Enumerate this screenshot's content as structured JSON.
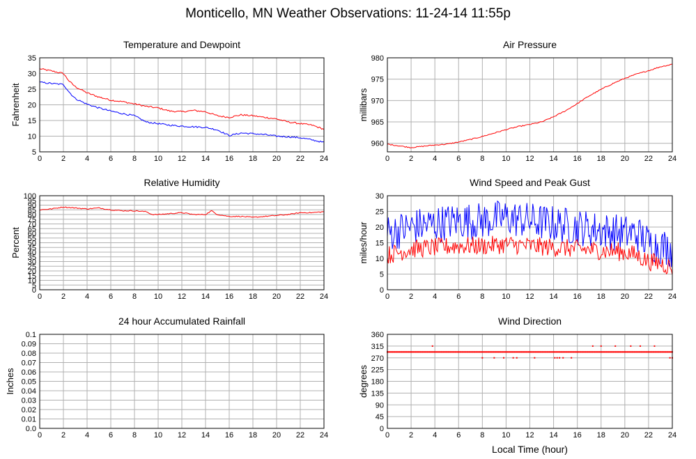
{
  "page_title": "Monticello, MN Weather Observations: 11-24-14 11:55p",
  "x_axis_label": "Local Time (hour)",
  "colors": {
    "red": "#ff0000",
    "blue": "#0000ff",
    "grid": "#b0b0b0",
    "axis": "#000000"
  },
  "chart_data": [
    {
      "id": "temperature",
      "type": "line",
      "title": "Temperature and Dewpoint",
      "ylabel": "Fahrenheit",
      "xlim": [
        0,
        24
      ],
      "ylim": [
        5,
        35
      ],
      "x_ticks": [
        "0",
        "2",
        "4",
        "6",
        "8",
        "10",
        "12",
        "14",
        "16",
        "18",
        "20",
        "22",
        "24"
      ],
      "y_ticks": [
        "5",
        "10",
        "15",
        "20",
        "25",
        "30",
        "35"
      ],
      "grid": true,
      "series": [
        {
          "color": "#ff0000",
          "noise": 0.25,
          "x": [
            0,
            1,
            2,
            2.5,
            3,
            4,
            5,
            6,
            7,
            8,
            9,
            10,
            11,
            12,
            13,
            14,
            15,
            16,
            17,
            18,
            19,
            20,
            21,
            22,
            23,
            24
          ],
          "y": [
            31.5,
            30.8,
            30,
            27.5,
            25.8,
            23.8,
            22.5,
            21.5,
            21,
            20.3,
            19.5,
            19,
            18,
            17.8,
            18.2,
            17.8,
            16.5,
            16,
            16.8,
            16.5,
            16,
            15.5,
            14.5,
            14,
            13.5,
            12.2
          ]
        },
        {
          "color": "#0000ff",
          "noise": 0.25,
          "x": [
            0,
            1,
            2,
            2.5,
            3,
            4,
            5,
            6,
            7,
            8,
            9,
            10,
            11,
            12,
            13,
            14,
            15,
            16,
            17,
            18,
            19,
            20,
            21,
            22,
            23,
            24
          ],
          "y": [
            27.2,
            26.8,
            26.5,
            24,
            22,
            20.2,
            19,
            18,
            17.2,
            16.5,
            14.5,
            14,
            13.5,
            13.2,
            13,
            12.8,
            12,
            10.2,
            11,
            10.8,
            10.5,
            10,
            9.8,
            9.5,
            8.8,
            8
          ]
        }
      ]
    },
    {
      "id": "pressure",
      "type": "line",
      "title": "Air Pressure",
      "ylabel": "millibars",
      "xlim": [
        0,
        24
      ],
      "ylim": [
        958,
        980
      ],
      "x_ticks": [
        "0",
        "2",
        "4",
        "6",
        "8",
        "10",
        "12",
        "14",
        "16",
        "18",
        "20",
        "22",
        "24"
      ],
      "y_ticks": [
        "960",
        "965",
        "970",
        "975",
        "980"
      ],
      "grid": true,
      "series": [
        {
          "color": "#ff0000",
          "noise": 0.12,
          "x": [
            0,
            1,
            2,
            3,
            4,
            5,
            6,
            7,
            8,
            9,
            10,
            11,
            12,
            13,
            14,
            15,
            16,
            17,
            18,
            19,
            20,
            21,
            22,
            23,
            24
          ],
          "y": [
            959.8,
            959.4,
            959.0,
            959.3,
            959.6,
            959.8,
            960.3,
            960.9,
            961.6,
            962.4,
            963.2,
            963.9,
            964.4,
            965.0,
            966.2,
            967.6,
            969.3,
            971.1,
            972.6,
            974,
            975.2,
            976.2,
            977.0,
            977.9,
            978.5
          ]
        }
      ]
    },
    {
      "id": "humidity",
      "type": "line",
      "title": "Relative Humidity",
      "ylabel": "Percent",
      "xlim": [
        0,
        24
      ],
      "ylim": [
        0,
        100
      ],
      "x_ticks": [
        "0",
        "2",
        "4",
        "6",
        "8",
        "10",
        "12",
        "14",
        "16",
        "18",
        "20",
        "22",
        "24"
      ],
      "y_ticks": [
        "0",
        "5",
        "10",
        "15",
        "20",
        "25",
        "30",
        "35",
        "40",
        "45",
        "50",
        "55",
        "60",
        "65",
        "70",
        "75",
        "80",
        "85",
        "90",
        "95",
        "100"
      ],
      "grid": true,
      "series": [
        {
          "color": "#ff0000",
          "noise": 0.5,
          "x": [
            0,
            1,
            2,
            3,
            4,
            5,
            6,
            7,
            8,
            9,
            9.5,
            10,
            11,
            12,
            13,
            14,
            14.5,
            15,
            16,
            17,
            18,
            19,
            20,
            21,
            22,
            23,
            24
          ],
          "y": [
            85,
            86,
            88,
            87,
            86,
            87,
            85,
            84,
            84,
            83,
            80,
            80,
            81,
            82,
            80,
            80,
            84,
            80,
            78,
            78,
            77,
            78,
            79,
            80,
            82,
            82,
            83
          ]
        }
      ]
    },
    {
      "id": "wind",
      "type": "line",
      "title": "Wind Speed and Peak Gust",
      "ylabel": "miles/hour",
      "xlim": [
        0,
        24
      ],
      "ylim": [
        0,
        30
      ],
      "x_ticks": [
        "0",
        "2",
        "4",
        "6",
        "8",
        "10",
        "12",
        "14",
        "16",
        "18",
        "20",
        "22",
        "24"
      ],
      "y_ticks": [
        "0",
        "5",
        "10",
        "15",
        "20",
        "25",
        "30"
      ],
      "grid": true,
      "series": [
        {
          "color": "#0000ff",
          "noise": 6.0,
          "x": [
            0,
            2,
            4,
            6,
            8,
            10,
            12,
            14,
            16,
            18,
            20,
            21,
            22,
            23,
            24
          ],
          "y": [
            18,
            20,
            21,
            22,
            22,
            23,
            22,
            21,
            20,
            19,
            18,
            18,
            15,
            14,
            13
          ]
        },
        {
          "color": "#ff0000",
          "noise": 3.0,
          "x": [
            0,
            2,
            4,
            6,
            8,
            10,
            12,
            14,
            16,
            18,
            20,
            21,
            22,
            23,
            24
          ],
          "y": [
            11,
            13,
            13.5,
            14,
            14,
            14.5,
            14,
            13.5,
            13,
            12.5,
            12,
            11,
            9,
            8.5,
            7
          ]
        }
      ]
    },
    {
      "id": "rainfall",
      "type": "line",
      "title": "24 hour Accumulated Rainfall",
      "ylabel": "Inches",
      "xlim": [
        0,
        24
      ],
      "ylim": [
        0,
        0.1
      ],
      "x_ticks": [
        "0",
        "2",
        "4",
        "6",
        "8",
        "10",
        "12",
        "14",
        "16",
        "18",
        "20",
        "22",
        "24"
      ],
      "y_ticks": [
        "0.0",
        "0.01",
        "0.02",
        "0.03",
        "0.04",
        "0.05",
        "0.06",
        "0.07",
        "0.08",
        "0.09",
        "0.1"
      ],
      "grid": true,
      "series": [
        {
          "color": "#ff0000",
          "noise": 0,
          "x": [
            0,
            24
          ],
          "y": [
            0,
            0
          ]
        }
      ]
    },
    {
      "id": "direction",
      "type": "scatter",
      "title": "Wind Direction",
      "ylabel": "degrees",
      "xlim": [
        0,
        24
      ],
      "ylim": [
        0,
        360
      ],
      "x_ticks": [
        "0",
        "2",
        "4",
        "6",
        "8",
        "10",
        "12",
        "14",
        "16",
        "18",
        "20",
        "22",
        "24"
      ],
      "y_ticks": [
        "0",
        "45",
        "90",
        "135",
        "180",
        "225",
        "270",
        "315",
        "360"
      ],
      "grid": true,
      "series": [
        {
          "color": "#ff0000",
          "baseline": 292.5,
          "x_start": 0,
          "x_end": 24,
          "outliers": [
            {
              "x": 3.8,
              "y": 315
            },
            {
              "x": 8.0,
              "y": 270
            },
            {
              "x": 9.0,
              "y": 270
            },
            {
              "x": 9.8,
              "y": 270
            },
            {
              "x": 10.6,
              "y": 270
            },
            {
              "x": 10.9,
              "y": 270
            },
            {
              "x": 12.4,
              "y": 270
            },
            {
              "x": 14.1,
              "y": 270
            },
            {
              "x": 14.3,
              "y": 270
            },
            {
              "x": 14.5,
              "y": 270
            },
            {
              "x": 14.8,
              "y": 270
            },
            {
              "x": 15.5,
              "y": 270
            },
            {
              "x": 17.3,
              "y": 315
            },
            {
              "x": 18.0,
              "y": 315
            },
            {
              "x": 19.2,
              "y": 315
            },
            {
              "x": 20.5,
              "y": 315
            },
            {
              "x": 21.3,
              "y": 315
            },
            {
              "x": 22.5,
              "y": 315
            },
            {
              "x": 23.8,
              "y": 270
            },
            {
              "x": 24.0,
              "y": 270
            }
          ]
        }
      ]
    }
  ]
}
